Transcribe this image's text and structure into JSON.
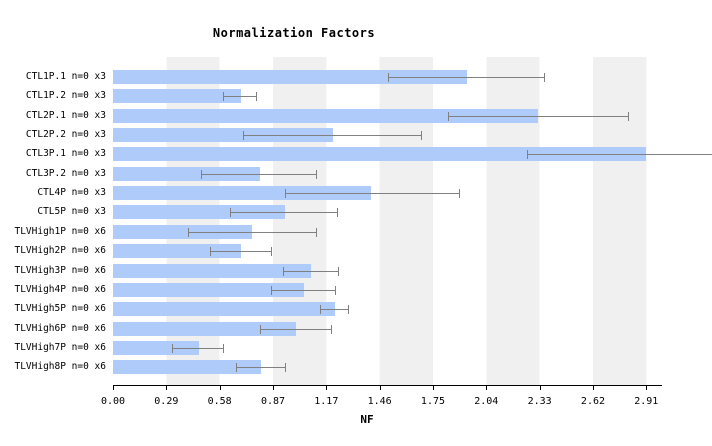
{
  "chart_data": {
    "type": "bar",
    "orientation": "horizontal",
    "title": "Normalization Factors",
    "xlabel": "NF",
    "xlim": [
      0,
      2.91
    ],
    "xtick_labels": [
      "0.00",
      "0.29",
      "0.58",
      "0.87",
      "1.17",
      "1.46",
      "1.75",
      "2.04",
      "2.33",
      "2.62",
      "2.91"
    ],
    "grid": "alternating vertical bands",
    "legend": "none",
    "categories": [
      "CTL1P.1 n=0 x3",
      "CTL1P.2 n=0 x3",
      "CTL2P.1 n=0 x3",
      "CTL2P.2 n=0 x3",
      "CTL3P.1 n=0 x3",
      "CTL3P.2 n=0 x3",
      "CTL4P n=0 x3",
      "CTL5P n=0 x3",
      "TLVHigh1P n=0 x6",
      "TLVHigh2P n=0 x6",
      "TLVHigh3P n=0 x6",
      "TLVHigh4P n=0 x6",
      "TLVHigh5P n=0 x6",
      "TLVHigh6P n=0 x6",
      "TLVHigh7P n=0 x6",
      "TLVHigh8P n=0 x6"
    ],
    "values": [
      1.93,
      0.7,
      2.32,
      1.2,
      2.91,
      0.8,
      1.41,
      0.94,
      0.76,
      0.7,
      1.08,
      1.04,
      1.21,
      1.0,
      0.47,
      0.81
    ],
    "error_low": [
      1.5,
      0.6,
      1.83,
      0.71,
      2.26,
      0.48,
      0.94,
      0.64,
      0.41,
      0.53,
      0.93,
      0.86,
      1.13,
      0.8,
      0.32,
      0.67
    ],
    "error_high": [
      2.35,
      0.78,
      2.81,
      1.68,
      3.56,
      1.11,
      1.89,
      1.22,
      1.11,
      0.86,
      1.23,
      1.21,
      1.28,
      1.19,
      0.6,
      0.94
    ],
    "colors": {
      "bar": "#aecbfa",
      "error_bar": "#808080",
      "band": "#f0f0f0",
      "axis": "#000000"
    }
  }
}
